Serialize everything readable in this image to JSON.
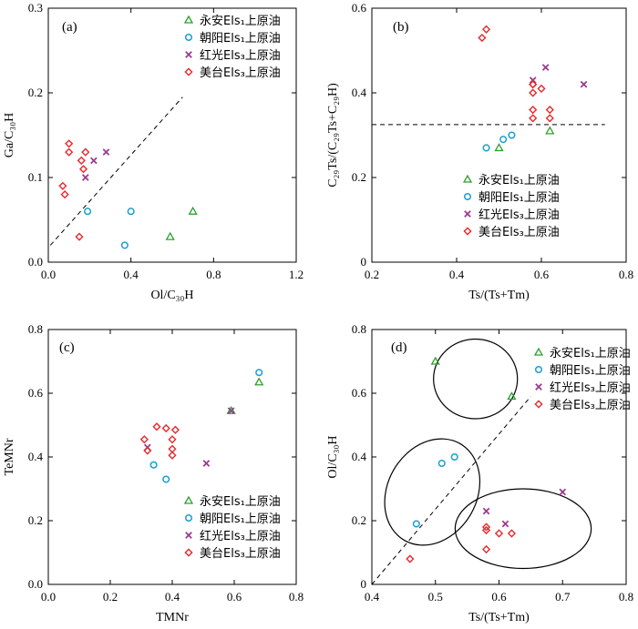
{
  "legend_labels": [
    "永安Els₁上原油",
    "朝阳Els₁上原油",
    "红光Els₃上原油",
    "美台Els₃上原油"
  ],
  "series_styles": [
    {
      "marker": "triangle",
      "color": "#2ca02c"
    },
    {
      "marker": "circle",
      "color": "#1a9fd0"
    },
    {
      "marker": "cross",
      "color": "#9b3b8f"
    },
    {
      "marker": "diamond",
      "color": "#e8282b"
    }
  ],
  "chart_data": [
    {
      "type": "scatter",
      "panel_label": "(a)",
      "xlabel": "Ol/C₃₀H",
      "ylabel": "Ga/C₃₀H",
      "xlim": [
        0,
        1.2
      ],
      "ylim": [
        0,
        0.3
      ],
      "xticks": [
        "0.0",
        "0.4",
        "0.8",
        "1.2"
      ],
      "yticks": [
        "0.0",
        "0.1",
        "0.2",
        "0.3"
      ],
      "legend_position": "top-right",
      "reference_line": {
        "style": "dashed",
        "points": [
          [
            0.01,
            0.02
          ],
          [
            0.65,
            0.195
          ]
        ]
      },
      "series": [
        {
          "name": "永安Els₁上原油",
          "x": [
            0.59,
            0.7
          ],
          "y": [
            0.03,
            0.06
          ]
        },
        {
          "name": "朝阳Els₁上原油",
          "x": [
            0.19,
            0.4,
            0.37
          ],
          "y": [
            0.06,
            0.06,
            0.02
          ]
        },
        {
          "name": "红光Els₃上原油",
          "x": [
            0.28,
            0.22,
            0.18
          ],
          "y": [
            0.13,
            0.12,
            0.1
          ]
        },
        {
          "name": "美台Els₃上原油",
          "x": [
            0.1,
            0.1,
            0.18,
            0.16,
            0.17,
            0.07,
            0.08,
            0.15
          ],
          "y": [
            0.14,
            0.13,
            0.13,
            0.12,
            0.11,
            0.09,
            0.08,
            0.03
          ]
        }
      ]
    },
    {
      "type": "scatter",
      "panel_label": "(b)",
      "xlabel": "Ts/(Ts+Tm)",
      "ylabel": "C₂₉Ts/(C₂₉Ts+C₂₉H)",
      "xlim": [
        0.2,
        0.8
      ],
      "ylim": [
        0,
        0.6
      ],
      "xticks": [
        "0.2",
        "0.4",
        "0.6",
        "0.8"
      ],
      "yticks": [
        "0",
        "0.2",
        "0.4",
        "0.6"
      ],
      "legend_position": "bottom-right",
      "reference_line": {
        "style": "dashed",
        "points": [
          [
            0.2,
            0.325
          ],
          [
            0.75,
            0.325
          ]
        ]
      },
      "series": [
        {
          "name": "永安Els₁上原油",
          "x": [
            0.5,
            0.62
          ],
          "y": [
            0.27,
            0.31
          ]
        },
        {
          "name": "朝阳Els₁上原油",
          "x": [
            0.47,
            0.51,
            0.53
          ],
          "y": [
            0.27,
            0.29,
            0.3
          ]
        },
        {
          "name": "红光Els₃上原油",
          "x": [
            0.58,
            0.61,
            0.7
          ],
          "y": [
            0.43,
            0.46,
            0.42
          ]
        },
        {
          "name": "美台Els₃上原油",
          "x": [
            0.46,
            0.47,
            0.58,
            0.6,
            0.58,
            0.62,
            0.58,
            0.58,
            0.62,
            0.58
          ],
          "y": [
            0.53,
            0.55,
            0.42,
            0.41,
            0.4,
            0.36,
            0.36,
            0.34,
            0.34,
            0.42
          ]
        }
      ]
    },
    {
      "type": "scatter",
      "panel_label": "(c)",
      "xlabel": "TMNr",
      "ylabel": "TeMNr",
      "xlim": [
        0,
        0.8
      ],
      "ylim": [
        0,
        0.8
      ],
      "xticks": [
        "0.0",
        "0.2",
        "0.4",
        "0.6",
        "0.8"
      ],
      "yticks": [
        "0.0",
        "0.2",
        "0.4",
        "0.6",
        "0.8"
      ],
      "legend_position": "bottom-right",
      "series": [
        {
          "name": "永安Els₁上原油",
          "x": [
            0.59,
            0.68
          ],
          "y": [
            0.545,
            0.635
          ]
        },
        {
          "name": "朝阳Els₁上原油",
          "x": [
            0.34,
            0.38,
            0.68
          ],
          "y": [
            0.375,
            0.33,
            0.665
          ]
        },
        {
          "name": "红光Els₃上原油",
          "x": [
            0.32,
            0.51,
            0.59
          ],
          "y": [
            0.43,
            0.38,
            0.545
          ]
        },
        {
          "name": "美台Els₃上原油",
          "x": [
            0.31,
            0.35,
            0.38,
            0.41,
            0.4,
            0.4,
            0.4,
            0.32
          ],
          "y": [
            0.455,
            0.495,
            0.49,
            0.485,
            0.455,
            0.425,
            0.405,
            0.42
          ]
        }
      ]
    },
    {
      "type": "scatter",
      "panel_label": "(d)",
      "xlabel": "Ts/(Ts+Tm)",
      "ylabel": "Ol/C₃₀H",
      "xlim": [
        0.4,
        0.8
      ],
      "ylim": [
        0,
        0.8
      ],
      "xticks": [
        "0.4",
        "0.5",
        "0.6",
        "0.7",
        "0.8"
      ],
      "yticks": [
        "0",
        "0.2",
        "0.4",
        "0.6",
        "0.8"
      ],
      "legend_position": "top-right",
      "reference_line": {
        "style": "dashed",
        "points": [
          [
            0.4,
            0.0
          ],
          [
            0.65,
            0.59
          ]
        ]
      },
      "groupings": [
        {
          "shape": "ellipse",
          "center": [
            0.563,
            0.645
          ],
          "radius": [
            0.066,
            0.125
          ],
          "rotation": 0
        },
        {
          "shape": "ellipse",
          "center": [
            0.495,
            0.29
          ],
          "radius": [
            0.07,
            0.175
          ],
          "rotation": 30
        },
        {
          "shape": "ellipse",
          "center": [
            0.638,
            0.175
          ],
          "radius": [
            0.107,
            0.125
          ],
          "rotation": 0
        }
      ],
      "series": [
        {
          "name": "永安Els₁上原油",
          "x": [
            0.5,
            0.62
          ],
          "y": [
            0.7,
            0.59
          ]
        },
        {
          "name": "朝阳Els₁上原油",
          "x": [
            0.47,
            0.51,
            0.53
          ],
          "y": [
            0.19,
            0.38,
            0.4
          ]
        },
        {
          "name": "红光Els₃上原油",
          "x": [
            0.58,
            0.61,
            0.7
          ],
          "y": [
            0.23,
            0.19,
            0.29
          ]
        },
        {
          "name": "美台Els₃上原油",
          "x": [
            0.46,
            0.58,
            0.58,
            0.6,
            0.62,
            0.58
          ],
          "y": [
            0.08,
            0.18,
            0.17,
            0.16,
            0.16,
            0.11
          ]
        }
      ]
    }
  ]
}
